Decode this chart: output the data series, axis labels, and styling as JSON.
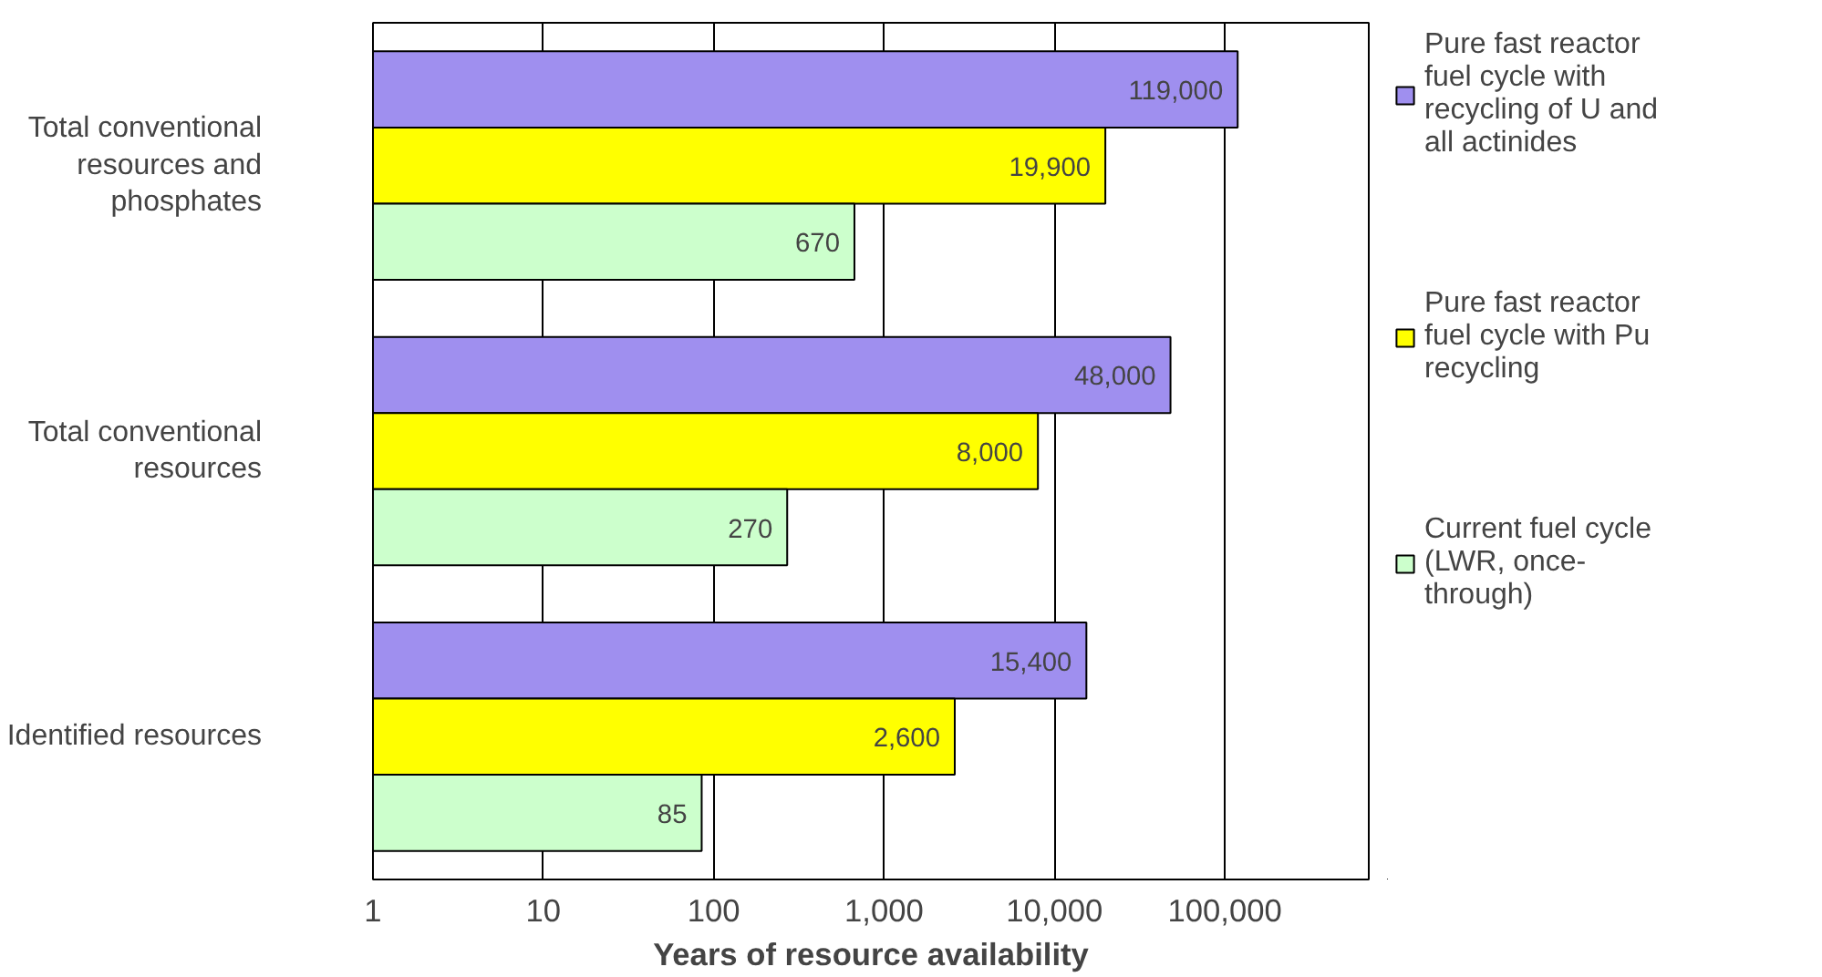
{
  "chart_data": {
    "type": "bar",
    "orientation": "horizontal",
    "log": "x",
    "xlabel": "Years of resource availability",
    "categories": [
      "Total conventional resources and phosphates",
      "Total conventional resources",
      "Identified resources"
    ],
    "series": [
      {
        "name": "Pure fast reactor fuel cycle with recycling of U and all actinides",
        "color": "#9f8fef",
        "values": [
          119000,
          48000,
          15400
        ]
      },
      {
        "name": "Pure fast reactor fuel cycle with Pu recycling",
        "color": "#ffff00",
        "values": [
          19900,
          8000,
          2600
        ]
      },
      {
        "name": "Current fuel cycle (LWR, once-through)",
        "color": "#ccffcc",
        "values": [
          670,
          270,
          85
        ]
      }
    ],
    "xlim": [
      1,
      700000
    ],
    "xticks": [
      1,
      10,
      100,
      {
        "value": 1000,
        "label": "1,000"
      },
      {
        "value": 10000,
        "label": "10,000"
      },
      {
        "value": 100000,
        "label": "100,000"
      }
    ],
    "grid": "x",
    "legend": "right",
    "value_labels": [
      [
        "119,000",
        "48,000",
        "15,400"
      ],
      [
        "19,900",
        "8,000",
        "2,600"
      ],
      [
        "670",
        "270",
        "85"
      ]
    ]
  }
}
